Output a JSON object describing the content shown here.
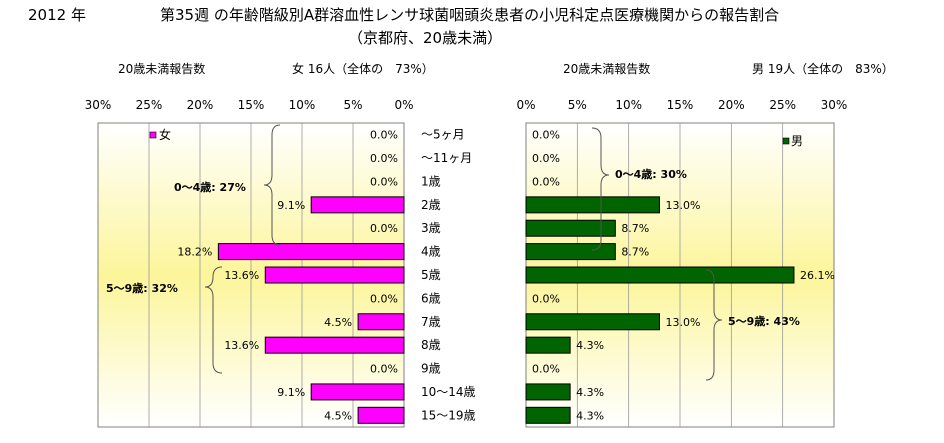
{
  "header": {
    "year": "2012 年",
    "title": "第35週 の年齢階級別A群溶血性レンサ球菌咽頭炎患者の小児科定点医療機関からの報告割合",
    "subtitle": "（京都府、20歳未満）"
  },
  "panels": {
    "female": {
      "report_label": "20歳未満報告数",
      "total_label": "女 16人（全体の　73%）",
      "legend_label": "女",
      "bracket_0_4": "0～4歳: 27%",
      "bracket_5_9": "5～9歳: 32%",
      "color": "#ff00ff"
    },
    "male": {
      "report_label": "20歳未満報告数",
      "total_label": "男 19人（全体の　83%）",
      "legend_label": "男",
      "bracket_0_4": "0～4歳: 30%",
      "bracket_5_9": "5～9歳: 43%",
      "color": "#006400"
    }
  },
  "chart_data": {
    "type": "bar",
    "orientation": "horizontal-pyramid",
    "categories": [
      "～5ヶ月",
      "～11ヶ月",
      "1歳",
      "2歳",
      "3歳",
      "4歳",
      "5歳",
      "6歳",
      "7歳",
      "8歳",
      "9歳",
      "10～14歳",
      "15～19歳"
    ],
    "series": [
      {
        "name": "女",
        "values": [
          0.0,
          0.0,
          0.0,
          9.1,
          0.0,
          18.2,
          13.6,
          0.0,
          4.5,
          13.6,
          0.0,
          9.1,
          4.5
        ],
        "labels": [
          "0.0%",
          "0.0%",
          "0.0%",
          "9.1%",
          "0.0%",
          "18.2%",
          "13.6%",
          "0.0%",
          "4.5%",
          "13.6%",
          "0.0%",
          "9.1%",
          "4.5%"
        ]
      },
      {
        "name": "男",
        "values": [
          0.0,
          0.0,
          0.0,
          13.0,
          8.7,
          8.7,
          26.1,
          0.0,
          13.0,
          4.3,
          0.0,
          4.3,
          4.3
        ],
        "labels": [
          "0.0%",
          "0.0%",
          "0.0%",
          "13.0%",
          "8.7%",
          "8.7%",
          "26.1%",
          "0.0%",
          "13.0%",
          "4.3%",
          "0.0%",
          "4.3%",
          "4.3%"
        ]
      }
    ],
    "xlim": [
      0,
      30
    ],
    "ticks": [
      "0%",
      "5%",
      "10%",
      "15%",
      "20%",
      "25%",
      "30%"
    ],
    "grid": true
  }
}
